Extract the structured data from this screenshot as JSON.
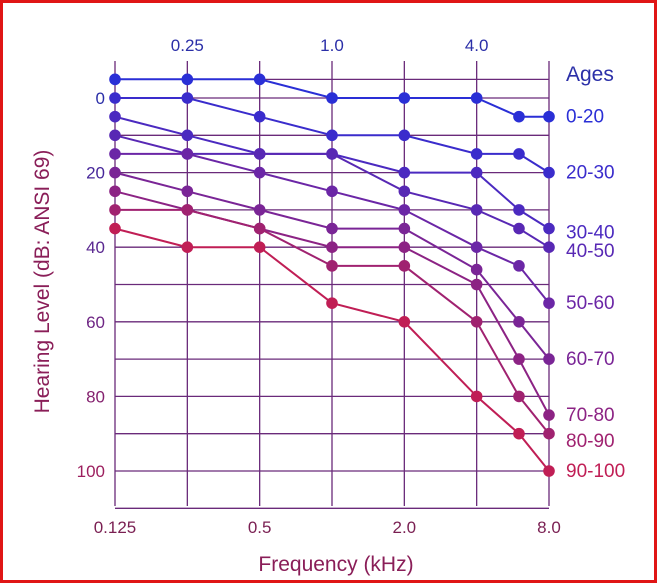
{
  "chart_data": {
    "type": "line",
    "xlabel": "Frequency (kHz)",
    "ylabel": "Hearing Level (dB: ANSI 69)",
    "x_scale": "log2",
    "ylim": [
      0,
      110
    ],
    "ylim_note": "inverted axis, 0 at top",
    "x_gridlines": [
      0.125,
      0.25,
      0.5,
      1.0,
      2.0,
      4.0,
      8.0
    ],
    "y_gridlines": [
      -5,
      0,
      10,
      20,
      30,
      40,
      50,
      60,
      70,
      80,
      90,
      100,
      110
    ],
    "bottom_ticks": [
      {
        "x": 0.125,
        "label": "0.125"
      },
      {
        "x": 0.5,
        "label": "0.5"
      },
      {
        "x": 2.0,
        "label": "2.0"
      },
      {
        "x": 8.0,
        "label": "8.0"
      }
    ],
    "top_ticks": [
      {
        "x": 0.25,
        "label": "0.25"
      },
      {
        "x": 1.0,
        "label": "1.0"
      },
      {
        "x": 4.0,
        "label": "4.0"
      }
    ],
    "y_ticks": [
      {
        "y": 0,
        "label": "0"
      },
      {
        "y": 20,
        "label": "20"
      },
      {
        "y": 40,
        "label": "40"
      },
      {
        "y": 60,
        "label": "60"
      },
      {
        "y": 80,
        "label": "80"
      },
      {
        "y": 100,
        "label": "100"
      }
    ],
    "legend_title": "Ages",
    "series": [
      {
        "name": "0-20",
        "color": "#2a2fd6",
        "points": [
          [
            0.125,
            -5
          ],
          [
            0.25,
            -5
          ],
          [
            0.5,
            -5
          ],
          [
            1.0,
            0
          ],
          [
            2.0,
            0
          ],
          [
            4.0,
            0
          ],
          [
            6.0,
            5
          ],
          [
            8.0,
            5
          ]
        ]
      },
      {
        "name": "20-30",
        "color": "#3a2ccc",
        "points": [
          [
            0.125,
            0
          ],
          [
            0.25,
            0
          ],
          [
            0.5,
            5
          ],
          [
            1.0,
            10
          ],
          [
            2.0,
            10
          ],
          [
            4.0,
            15
          ],
          [
            6.0,
            15
          ],
          [
            8.0,
            20
          ]
        ]
      },
      {
        "name": "30-40",
        "color": "#4b2ac0",
        "points": [
          [
            0.125,
            5
          ],
          [
            0.25,
            10
          ],
          [
            0.5,
            15
          ],
          [
            1.0,
            15
          ],
          [
            2.0,
            20
          ],
          [
            4.0,
            20
          ],
          [
            6.0,
            30
          ],
          [
            8.0,
            35
          ]
        ]
      },
      {
        "name": "40-50",
        "color": "#5828b4",
        "points": [
          [
            0.125,
            10
          ],
          [
            0.25,
            15
          ],
          [
            0.5,
            15
          ],
          [
            1.0,
            15
          ],
          [
            2.0,
            25
          ],
          [
            4.0,
            30
          ],
          [
            6.0,
            35
          ],
          [
            8.0,
            40
          ]
        ]
      },
      {
        "name": "50-60",
        "color": "#6b26a6",
        "points": [
          [
            0.125,
            15
          ],
          [
            0.25,
            15
          ],
          [
            0.5,
            20
          ],
          [
            1.0,
            25
          ],
          [
            2.0,
            30
          ],
          [
            4.0,
            40
          ],
          [
            6.0,
            45
          ],
          [
            8.0,
            55
          ]
        ]
      },
      {
        "name": "60-70",
        "color": "#7a2596",
        "points": [
          [
            0.125,
            20
          ],
          [
            0.25,
            25
          ],
          [
            0.5,
            30
          ],
          [
            1.0,
            35
          ],
          [
            2.0,
            35
          ],
          [
            4.0,
            46
          ],
          [
            6.0,
            60
          ],
          [
            8.0,
            70
          ]
        ]
      },
      {
        "name": "70-80",
        "color": "#8c2384",
        "points": [
          [
            0.125,
            25
          ],
          [
            0.25,
            30
          ],
          [
            0.5,
            35
          ],
          [
            1.0,
            40
          ],
          [
            2.0,
            40
          ],
          [
            4.0,
            50
          ],
          [
            6.0,
            70
          ],
          [
            8.0,
            85
          ]
        ]
      },
      {
        "name": "80-90",
        "color": "#a02270",
        "points": [
          [
            0.125,
            30
          ],
          [
            0.25,
            30
          ],
          [
            0.5,
            35
          ],
          [
            1.0,
            45
          ],
          [
            2.0,
            45
          ],
          [
            4.0,
            60
          ],
          [
            6.0,
            80
          ],
          [
            8.0,
            90
          ]
        ]
      },
      {
        "name": "90-100",
        "color": "#c01e55",
        "points": [
          [
            0.125,
            35
          ],
          [
            0.25,
            40
          ],
          [
            0.5,
            40
          ],
          [
            1.0,
            55
          ],
          [
            2.0,
            60
          ],
          [
            4.0,
            80
          ],
          [
            6.0,
            90
          ],
          [
            8.0,
            100
          ]
        ]
      }
    ],
    "legend_labels": [
      {
        "text": "0-20",
        "anchor_y": 5,
        "color": "#2a2fd6"
      },
      {
        "text": "20-30",
        "anchor_y": 20,
        "color": "#3a2ccc"
      },
      {
        "text": "30-40",
        "anchor_y": 36,
        "color": "#4b2ac0"
      },
      {
        "text": "40-50",
        "anchor_y": 41,
        "color": "#5828b4"
      },
      {
        "text": "50-60",
        "anchor_y": 55,
        "color": "#6b26a6"
      },
      {
        "text": "60-70",
        "anchor_y": 70,
        "color": "#7a2596"
      },
      {
        "text": "70-80",
        "anchor_y": 85,
        "color": "#8c2384"
      },
      {
        "text": "80-90",
        "anchor_y": 92,
        "color": "#a02270"
      },
      {
        "text": "90-100",
        "anchor_y": 100,
        "color": "#c01e55"
      }
    ]
  }
}
